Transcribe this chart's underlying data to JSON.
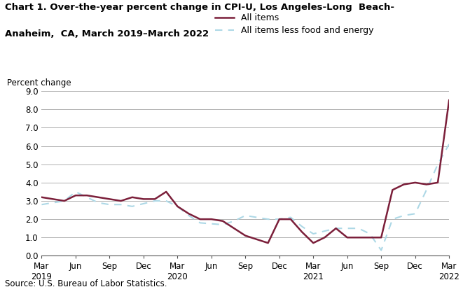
{
  "title_line1": "Chart 1. Over-the-year percent change in CPI-U, Los Angeles-Long  Beach-",
  "title_line2": "Anaheim,  CA, March 2019–March 2022",
  "ylabel": "Percent change",
  "source": "Source: U.S. Bureau of Labor Statistics.",
  "ylim": [
    0.0,
    9.0
  ],
  "yticks": [
    0.0,
    1.0,
    2.0,
    3.0,
    4.0,
    5.0,
    6.0,
    7.0,
    8.0,
    9.0
  ],
  "xtick_positions": [
    0,
    3,
    6,
    9,
    12,
    15,
    18,
    21,
    24,
    27,
    30,
    33,
    36
  ],
  "xtick_labels": [
    "Mar\n2019",
    "Jun",
    "Sep",
    "Dec",
    "Mar\n2020",
    "Jun",
    "Sep",
    "Dec",
    "Mar\n2021",
    "Jun",
    "Sep",
    "Dec",
    "Mar\n2022"
  ],
  "all_items_color": "#7B1F3A",
  "core_color": "#ADD8E6",
  "all_items_label": "All items",
  "core_label": "All items less food and energy",
  "all_items_x": [
    0,
    1,
    2,
    3,
    4,
    5,
    6,
    7,
    8,
    9,
    10,
    11,
    12,
    13,
    14,
    15,
    16,
    17,
    18,
    19,
    20,
    21,
    22,
    23,
    24,
    25,
    26,
    27,
    28,
    29,
    30,
    31,
    32,
    33,
    34,
    35,
    36
  ],
  "all_items_y": [
    3.2,
    3.1,
    3.0,
    3.3,
    3.3,
    3.2,
    3.1,
    3.0,
    3.2,
    3.1,
    3.1,
    3.5,
    2.7,
    2.3,
    2.0,
    2.0,
    1.9,
    1.5,
    1.1,
    0.9,
    0.7,
    2.0,
    2.0,
    1.3,
    0.7,
    1.0,
    1.5,
    1.0,
    1.0,
    1.0,
    1.0,
    3.6,
    3.9,
    4.0,
    3.9,
    4.0,
    8.5
  ],
  "core_x": [
    0,
    1,
    2,
    3,
    4,
    5,
    6,
    7,
    8,
    9,
    10,
    11,
    12,
    13,
    14,
    15,
    16,
    17,
    18,
    19,
    20,
    21,
    22,
    23,
    24,
    25,
    26,
    27,
    28,
    29,
    30,
    31,
    32,
    33,
    34,
    35,
    36
  ],
  "core_y": [
    2.8,
    2.9,
    3.0,
    3.5,
    3.2,
    2.9,
    2.8,
    2.8,
    2.7,
    2.85,
    3.0,
    3.0,
    2.7,
    2.2,
    1.8,
    1.75,
    1.7,
    1.9,
    2.2,
    2.1,
    2.0,
    2.0,
    2.1,
    1.6,
    1.2,
    1.35,
    1.5,
    1.5,
    1.5,
    1.2,
    0.3,
    2.0,
    2.2,
    2.3,
    3.6,
    5.0,
    6.1
  ],
  "background_color": "#ffffff",
  "grid_color": "#b0b0b0"
}
